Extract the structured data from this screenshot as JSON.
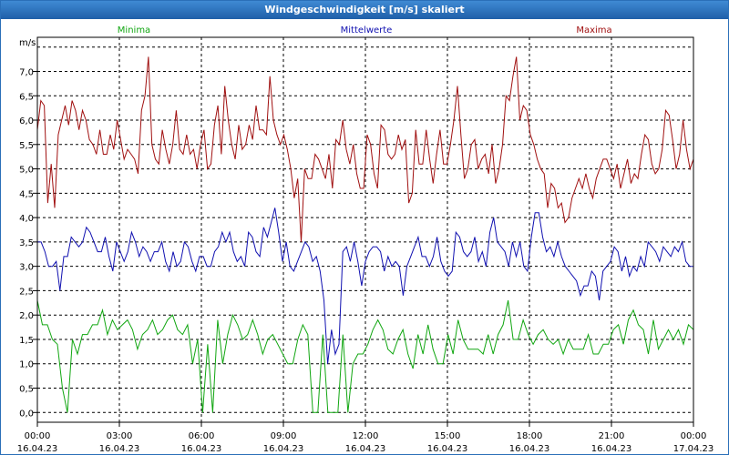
{
  "window": {
    "title": "Windgeschwindigkeit [m/s] skaliert"
  },
  "colors": {
    "min": "#11a611",
    "mean": "#1010b0",
    "max": "#a01010",
    "grid": "#000000",
    "text": "#000000"
  },
  "chart_data": {
    "type": "line",
    "title": "Windgeschwindigkeit [m/s] skaliert",
    "ylabel": "m/s",
    "ylim": [
      -0.2,
      7.7
    ],
    "xlim": [
      0,
      24
    ],
    "yticks": [
      "0,0",
      "0,5",
      "1,0",
      "1,5",
      "2,0",
      "2,5",
      "3,0",
      "3,5",
      "4,0",
      "4,5",
      "5,0",
      "5,5",
      "6,0",
      "6,5",
      "7,0"
    ],
    "xticks": [
      {
        "time": "00:00",
        "date": "16.04.23"
      },
      {
        "time": "03:00",
        "date": "16.04.23"
      },
      {
        "time": "06:00",
        "date": "16.04.23"
      },
      {
        "time": "09:00",
        "date": "16.04.23"
      },
      {
        "time": "12:00",
        "date": "16.04.23"
      },
      {
        "time": "15:00",
        "date": "16.04.23"
      },
      {
        "time": "18:00",
        "date": "16.04.23"
      },
      {
        "time": "21:00",
        "date": "16.04.23"
      },
      {
        "time": "00:00",
        "date": "17.04.23"
      }
    ],
    "series": [
      {
        "name": "Minima",
        "color": "#11a611",
        "values": [
          2.3,
          1.8,
          1.8,
          1.5,
          1.4,
          0.5,
          0.0,
          1.5,
          1.2,
          1.6,
          1.6,
          1.8,
          1.8,
          2.1,
          1.6,
          1.9,
          1.7,
          1.8,
          1.9,
          1.7,
          1.3,
          1.6,
          1.7,
          1.9,
          1.6,
          1.7,
          1.9,
          2.0,
          1.7,
          1.6,
          1.8,
          1.0,
          1.5,
          0.0,
          1.4,
          0.0,
          1.9,
          1.0,
          1.6,
          2.0,
          1.8,
          1.5,
          1.6,
          1.9,
          1.6,
          1.2,
          1.5,
          1.6,
          1.4,
          1.2,
          1.0,
          1.0,
          1.5,
          1.8,
          1.6,
          0.0,
          0.0,
          1.6,
          0.0,
          0.0,
          0.0,
          1.6,
          0.0,
          1.0,
          1.2,
          1.2,
          1.4,
          1.7,
          1.9,
          1.7,
          1.3,
          1.2,
          1.5,
          1.7,
          1.2,
          0.9,
          1.6,
          1.2,
          1.8,
          1.3,
          1.0,
          1.0,
          1.6,
          1.2,
          1.9,
          1.5,
          1.3,
          1.3,
          1.3,
          1.2,
          1.6,
          1.2,
          1.6,
          1.8,
          2.3,
          1.5,
          1.5,
          1.9,
          1.6,
          1.4,
          1.6,
          1.7,
          1.5,
          1.4,
          1.5,
          1.2,
          1.5,
          1.3,
          1.3,
          1.3,
          1.6,
          1.2,
          1.2,
          1.4,
          1.4,
          1.7,
          1.8,
          1.4,
          1.9,
          2.1,
          1.8,
          1.7,
          1.2,
          1.9,
          1.3,
          1.5,
          1.7,
          1.5,
          1.7,
          1.4,
          1.8,
          1.7
        ]
      },
      {
        "name": "Mittelwerte",
        "color": "#1010b0",
        "values": [
          3.5,
          3.5,
          3.3,
          3.0,
          3.0,
          3.1,
          2.5,
          3.2,
          3.2,
          3.6,
          3.5,
          3.4,
          3.5,
          3.8,
          3.7,
          3.5,
          3.3,
          3.3,
          3.6,
          3.2,
          2.9,
          3.5,
          3.3,
          3.1,
          3.3,
          3.7,
          3.5,
          3.2,
          3.4,
          3.3,
          3.1,
          3.3,
          3.3,
          3.5,
          3.1,
          2.9,
          3.3,
          3.0,
          3.1,
          3.5,
          3.4,
          3.1,
          2.9,
          3.2,
          3.2,
          3.0,
          3.0,
          3.3,
          3.4,
          3.7,
          3.5,
          3.7,
          3.3,
          3.1,
          3.2,
          3.0,
          3.7,
          3.6,
          3.3,
          3.2,
          3.8,
          3.6,
          3.9,
          4.2,
          3.7,
          3.1,
          3.5,
          3.0,
          2.9,
          3.1,
          3.3,
          3.5,
          3.4,
          3.1,
          3.2,
          2.9,
          2.3,
          1.0,
          1.7,
          1.2,
          1.4,
          3.3,
          3.4,
          3.1,
          3.5,
          3.1,
          2.6,
          3.1,
          3.3,
          3.4,
          3.4,
          3.3,
          2.9,
          3.2,
          3.0,
          3.1,
          3.0,
          2.4,
          3.0,
          3.2,
          3.4,
          3.6,
          3.2,
          3.2,
          3.0,
          3.2,
          3.6,
          3.1,
          2.9,
          2.8,
          2.9,
          3.7,
          3.6,
          3.3,
          3.2,
          3.3,
          3.6,
          3.1,
          3.3,
          3.0,
          3.7,
          4.0,
          3.5,
          3.4,
          3.3,
          3.0,
          3.5,
          3.2,
          3.5,
          3.0,
          2.9,
          3.6,
          4.1,
          4.1,
          3.6,
          3.3,
          3.4,
          3.2,
          3.5,
          3.2,
          3.0,
          2.9,
          2.8,
          2.7,
          2.4,
          2.6,
          2.6,
          2.9,
          2.8,
          2.3,
          2.9,
          3.0,
          3.1,
          3.4,
          3.3,
          2.9,
          3.2,
          2.8,
          3.0,
          2.9,
          3.2,
          3.0,
          3.5,
          3.4,
          3.3,
          3.1,
          3.4,
          3.3,
          3.2,
          3.4,
          3.3,
          3.5,
          3.1,
          3.0,
          3.0
        ]
      },
      {
        "name": "Maxima",
        "color": "#a01010",
        "values": [
          5.8,
          6.4,
          6.3,
          4.3,
          5.1,
          4.2,
          5.7,
          6.0,
          6.3,
          5.9,
          6.4,
          6.2,
          5.8,
          6.2,
          6.0,
          5.6,
          5.5,
          5.3,
          5.8,
          5.3,
          5.3,
          5.7,
          5.4,
          6.0,
          5.6,
          5.2,
          5.4,
          5.3,
          5.2,
          4.9,
          6.2,
          6.5,
          7.3,
          5.5,
          5.2,
          5.1,
          5.8,
          5.4,
          5.1,
          5.5,
          6.2,
          5.4,
          5.3,
          5.7,
          5.3,
          5.4,
          5.0,
          5.5,
          5.8,
          5.0,
          5.1,
          5.9,
          6.3,
          5.3,
          6.7,
          6.0,
          5.5,
          5.2,
          5.9,
          5.4,
          5.5,
          5.9,
          5.6,
          6.3,
          5.8,
          5.8,
          5.7,
          6.9,
          6.0,
          5.7,
          5.5,
          5.7,
          5.4,
          5.0,
          4.4,
          4.8,
          3.5,
          5.0,
          4.8,
          4.8,
          5.3,
          5.2,
          5.0,
          4.8,
          5.3,
          4.6,
          5.6,
          5.5,
          6.0,
          5.4,
          5.1,
          5.5,
          4.9,
          4.6,
          4.6,
          5.7,
          5.5,
          4.9,
          4.6,
          5.9,
          5.8,
          5.3,
          5.2,
          5.3,
          5.7,
          5.4,
          5.6,
          4.3,
          4.5,
          5.8,
          5.1,
          5.1,
          5.8,
          5.2,
          4.7,
          5.3,
          5.8,
          5.1,
          5.1,
          5.5,
          6.0,
          6.7,
          5.7,
          4.8,
          5.0,
          5.5,
          5.6,
          5.0,
          5.2,
          5.3,
          4.9,
          5.5,
          4.7,
          5.0,
          5.5,
          6.5,
          6.4,
          6.9,
          7.3,
          6.0,
          6.3,
          6.2,
          5.7,
          5.5,
          5.2,
          5.0,
          4.9,
          4.2,
          4.7,
          4.6,
          4.2,
          4.3,
          3.9,
          4.0,
          4.4,
          4.6,
          4.8,
          4.6,
          4.9,
          4.6,
          4.4,
          4.8,
          5.0,
          5.2,
          5.2,
          5.0,
          4.8,
          5.1,
          4.6,
          4.9,
          5.2,
          4.7,
          4.9,
          4.8,
          5.3,
          5.7,
          5.6,
          5.1,
          4.9,
          5.0,
          5.4,
          6.2,
          6.1,
          5.6,
          5.0,
          5.3,
          6.0,
          5.4,
          5.0,
          5.2
        ]
      }
    ]
  }
}
